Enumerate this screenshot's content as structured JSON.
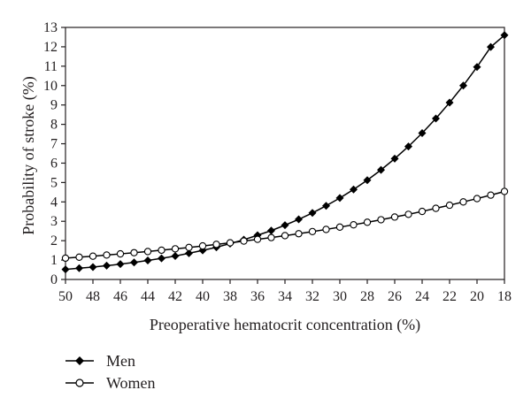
{
  "chart_data": {
    "type": "line",
    "title": "",
    "xlabel": "Preoperative hematocrit concentration (%)",
    "ylabel": "Probability of stroke (%)",
    "xlim": [
      50,
      18
    ],
    "ylim": [
      0,
      13
    ],
    "x_reversed": true,
    "x_ticks": [
      50,
      48,
      46,
      44,
      42,
      40,
      38,
      36,
      34,
      32,
      30,
      28,
      26,
      24,
      22,
      20,
      18
    ],
    "y_ticks": [
      0,
      1,
      2,
      3,
      4,
      5,
      6,
      7,
      8,
      9,
      10,
      11,
      12,
      13
    ],
    "grid": false,
    "legend_position": "bottom-left",
    "x": [
      50,
      49,
      48,
      47,
      46,
      45,
      44,
      43,
      42,
      41,
      40,
      39,
      38,
      37,
      36,
      35,
      34,
      33,
      32,
      31,
      30,
      29,
      28,
      27,
      26,
      25,
      24,
      23,
      22,
      21,
      20,
      19,
      18
    ],
    "series": [
      {
        "name": "Men",
        "marker": "filled-diamond",
        "color": "#000000",
        "values": [
          0.52,
          0.58,
          0.64,
          0.71,
          0.79,
          0.88,
          0.98,
          1.09,
          1.21,
          1.35,
          1.5,
          1.66,
          1.85,
          2.05,
          2.28,
          2.52,
          2.8,
          3.1,
          3.43,
          3.8,
          4.2,
          4.64,
          5.12,
          5.65,
          6.23,
          6.86,
          7.55,
          8.3,
          9.12,
          10.0,
          10.96,
          11.99,
          12.6
        ]
      },
      {
        "name": "Women",
        "marker": "open-circle",
        "color": "#000000",
        "values": [
          1.1,
          1.15,
          1.2,
          1.26,
          1.32,
          1.38,
          1.44,
          1.51,
          1.58,
          1.65,
          1.73,
          1.81,
          1.89,
          1.98,
          2.07,
          2.16,
          2.26,
          2.36,
          2.47,
          2.58,
          2.7,
          2.82,
          2.95,
          3.08,
          3.22,
          3.36,
          3.51,
          3.67,
          3.83,
          4.0,
          4.17,
          4.35,
          4.54
        ]
      }
    ]
  }
}
